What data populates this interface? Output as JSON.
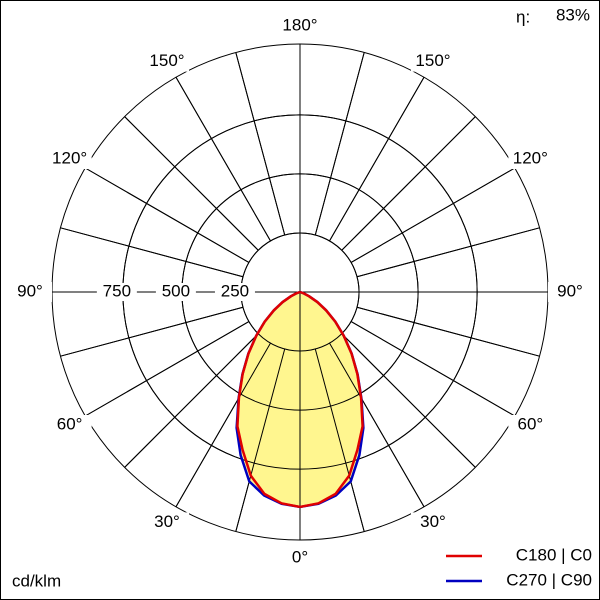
{
  "chart_data": {
    "type": "polar",
    "efficiency_label": "η:",
    "efficiency": "83%",
    "unit": "cd/klm",
    "angles": [
      0,
      5,
      10,
      15,
      20,
      25,
      30,
      35,
      40,
      45,
      50,
      55,
      60,
      65,
      70,
      75,
      80,
      85,
      90
    ],
    "series": [
      {
        "name": "C270 | C90",
        "color": "#0000c0",
        "values": [
          910,
          900,
          875,
          830,
          735,
          635,
          520,
          425,
          340,
          262,
          195,
          135,
          85,
          42,
          17,
          0,
          0,
          0,
          0
        ]
      },
      {
        "name": "C180 | C0",
        "color": "#e00000",
        "values": [
          910,
          898,
          868,
          805,
          711,
          627,
          517,
          423,
          339,
          262,
          195,
          135,
          85,
          42,
          17,
          0,
          0,
          0,
          0
        ]
      }
    ],
    "fill_color": "#fff68f",
    "rlim": [
      0,
      1050
    ],
    "rticks": [
      250,
      500,
      750
    ],
    "angle_ticks": [
      {
        "value": 0,
        "label": "0°"
      },
      {
        "value": 30,
        "label": "30°"
      },
      {
        "value": 60,
        "label": "60°"
      },
      {
        "value": 90,
        "label": "90°"
      },
      {
        "value": 120,
        "label": "120°"
      },
      {
        "value": 150,
        "label": "150°"
      },
      {
        "value": 180,
        "label": "180°"
      }
    ],
    "spoke_step": 15
  }
}
